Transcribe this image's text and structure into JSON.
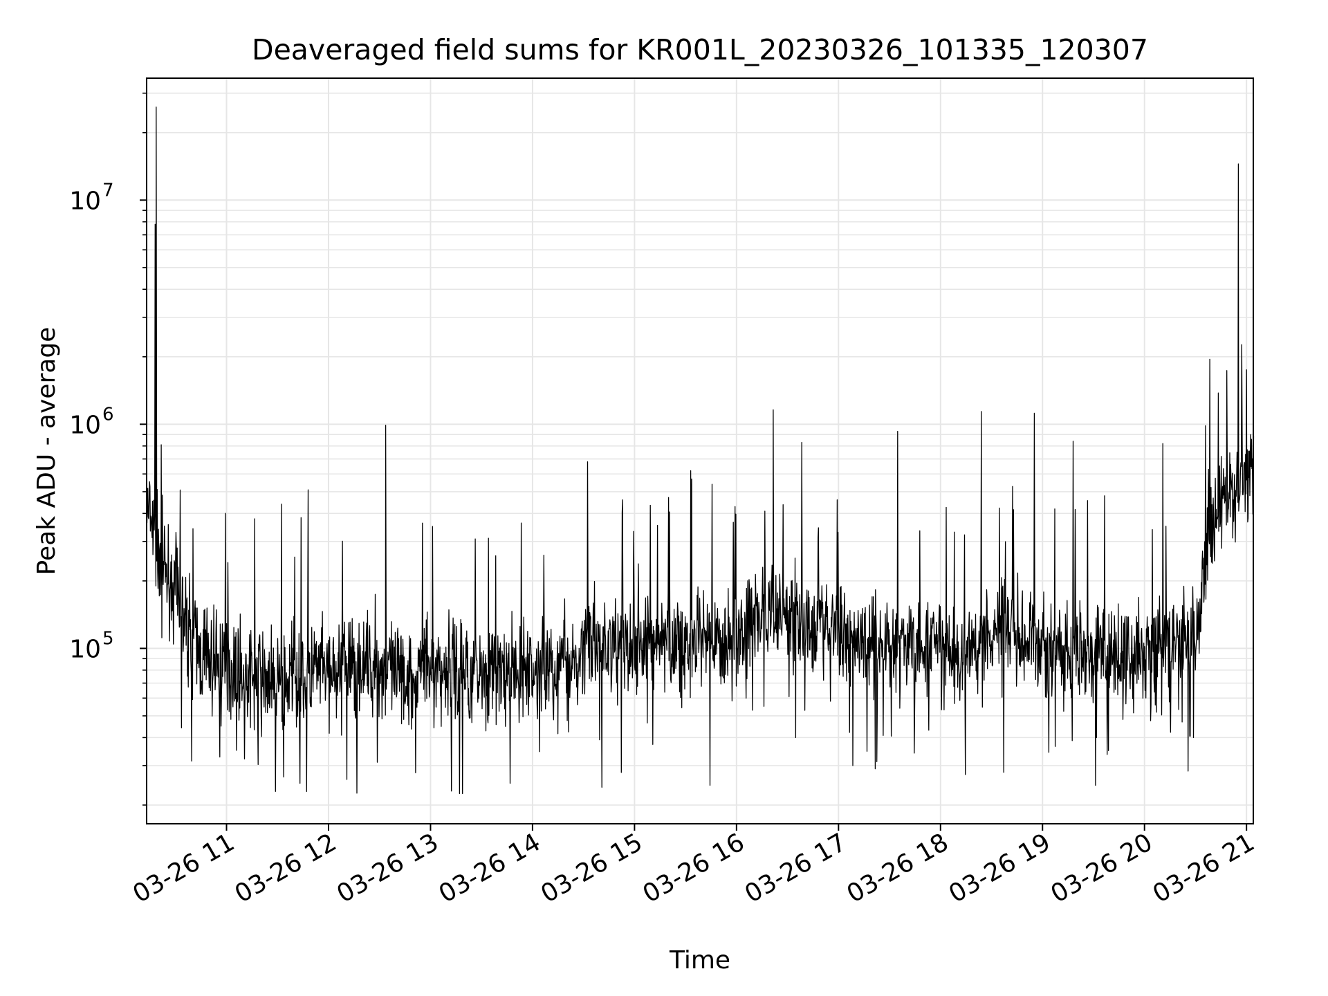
{
  "chart_data": {
    "type": "line",
    "title": "Deaveraged field sums for KR001L_20230326_101335_120307",
    "xlabel": "Time",
    "ylabel": "Peak ADU - average",
    "y_scale": "log",
    "ylim": [
      16500,
      35000000
    ],
    "xlim": [
      "03-26 10:13",
      "03-26 21:04"
    ],
    "y_ticks": [
      {
        "value": 100000,
        "base": "10",
        "exponent": "5"
      },
      {
        "value": 1000000,
        "base": "10",
        "exponent": "6"
      },
      {
        "value": 10000000,
        "base": "10",
        "exponent": "7"
      }
    ],
    "x_tick_labels": [
      "03-26 11",
      "03-26 12",
      "03-26 13",
      "03-26 14",
      "03-26 15",
      "03-26 16",
      "03-26 17",
      "03-26 18",
      "03-26 19",
      "03-26 20",
      "03-26 21"
    ],
    "x_tick_hours": [
      11,
      12,
      13,
      14,
      15,
      16,
      17,
      18,
      19,
      20,
      21
    ],
    "grid": true,
    "line_color": "#000000",
    "series": [
      {
        "x_hours": [
          10.22,
          10.3,
          10.4,
          10.5,
          10.6,
          10.7,
          10.8,
          11.0,
          11.25,
          11.5,
          11.75,
          12.0,
          12.25,
          12.5,
          12.75,
          13.0,
          13.25,
          13.5,
          13.75,
          14.0,
          14.25,
          14.5,
          14.75,
          15.0,
          15.25,
          15.5,
          15.75,
          16.0,
          16.25,
          16.5,
          16.75,
          17.0,
          17.25,
          17.5,
          17.75,
          18.0,
          18.25,
          18.5,
          18.75,
          19.0,
          19.25,
          19.5,
          19.75,
          20.0,
          20.25,
          20.5,
          20.6,
          20.7,
          20.8,
          20.9,
          21.0,
          21.07
        ],
        "y": [
          420000,
          300000,
          230000,
          180000,
          130000,
          100000,
          90000,
          85000,
          75000,
          70000,
          75000,
          80000,
          85000,
          80000,
          75000,
          85000,
          80000,
          78000,
          75000,
          80000,
          85000,
          100000,
          105000,
          100000,
          110000,
          105000,
          100000,
          115000,
          140000,
          150000,
          130000,
          120000,
          110000,
          105000,
          100000,
          100000,
          90000,
          130000,
          120000,
          100000,
          95000,
          100000,
          90000,
          95000,
          100000,
          110000,
          250000,
          380000,
          450000,
          550000,
          600000,
          650000
        ],
        "spikes": [
          {
            "x_hour": 10.31,
            "y": 26000000
          },
          {
            "x_hour": 10.3,
            "y": 7800000
          },
          {
            "x_hour": 10.36,
            "y": 810000
          },
          {
            "x_hour": 11.54,
            "y": 440000
          },
          {
            "x_hour": 11.8,
            "y": 510000
          },
          {
            "x_hour": 12.56,
            "y": 990000
          },
          {
            "x_hour": 13.02,
            "y": 350000
          },
          {
            "x_hour": 14.54,
            "y": 680000
          },
          {
            "x_hour": 15.56,
            "y": 570000
          },
          {
            "x_hour": 15.76,
            "y": 540000
          },
          {
            "x_hour": 16.36,
            "y": 1160000
          },
          {
            "x_hour": 16.64,
            "y": 830000
          },
          {
            "x_hour": 17.58,
            "y": 930000
          },
          {
            "x_hour": 18.4,
            "y": 1140000
          },
          {
            "x_hour": 18.92,
            "y": 1120000
          },
          {
            "x_hour": 19.3,
            "y": 840000
          },
          {
            "x_hour": 20.18,
            "y": 820000
          },
          {
            "x_hour": 20.64,
            "y": 1950000
          },
          {
            "x_hour": 20.92,
            "y": 14500000
          },
          {
            "x_hour": 21.0,
            "y": 1750000
          }
        ],
        "dips": [
          {
            "x_hour": 11.48,
            "y": 23000
          },
          {
            "x_hour": 11.72,
            "y": 25000
          },
          {
            "x_hour": 12.18,
            "y": 26000
          },
          {
            "x_hour": 13.78,
            "y": 25000
          },
          {
            "x_hour": 14.68,
            "y": 24000
          },
          {
            "x_hour": 15.74,
            "y": 24500
          },
          {
            "x_hour": 16.58,
            "y": 40000
          },
          {
            "x_hour": 17.14,
            "y": 30000
          },
          {
            "x_hour": 17.36,
            "y": 29000
          },
          {
            "x_hour": 18.62,
            "y": 28000
          },
          {
            "x_hour": 19.52,
            "y": 24500
          },
          {
            "x_hour": 20.48,
            "y": 40000
          }
        ]
      }
    ]
  }
}
